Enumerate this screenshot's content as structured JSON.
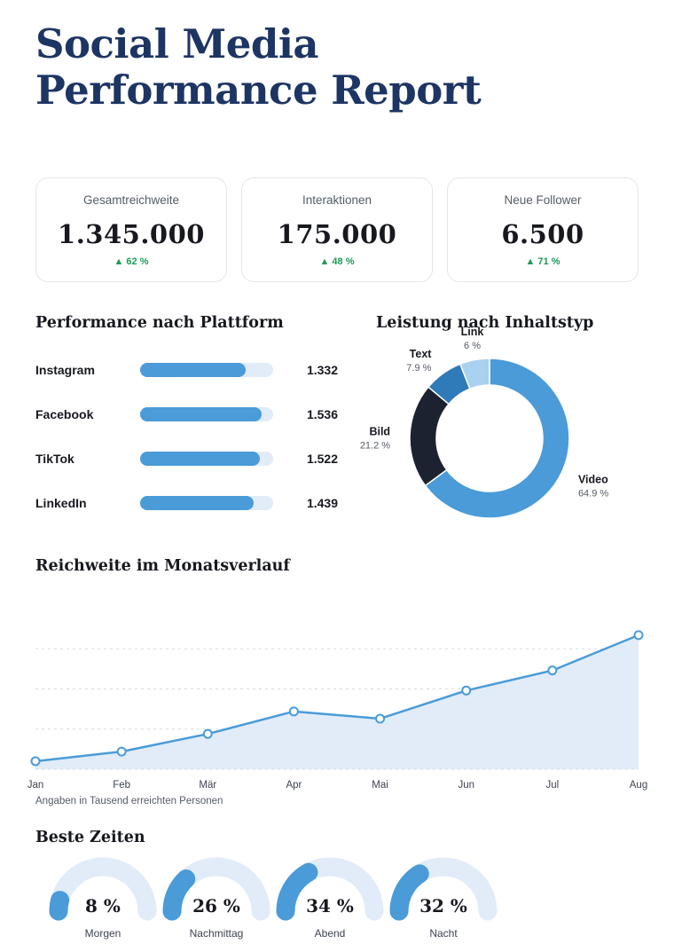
{
  "title": {
    "line1": "Social Media",
    "line2": "Performance Report"
  },
  "kpis": [
    {
      "label": "Gesamtreichweite",
      "value": "1.345.000",
      "change": "▲ 62 %"
    },
    {
      "label": "Interaktionen",
      "value": "175.000",
      "change": "▲ 48 %"
    },
    {
      "label": "Neue Follower",
      "value": "6.500",
      "change": "▲  71 %"
    }
  ],
  "colors": {
    "title": "#1d3563",
    "accent": "#4a9bd8",
    "accent_light": "#e1ecf8",
    "positive": "#1f9a55",
    "dark": "#1c2230",
    "mid_blue": "#2f7ab8",
    "pale_blue": "#a9d1f0"
  },
  "chart_data": [
    {
      "type": "bar",
      "title": "Performance nach Plattform",
      "categories": [
        "Instagram",
        "Facebook",
        "TikTok",
        "LinkedIn"
      ],
      "values": [
        1.332,
        1.536,
        1.522,
        1.439
      ],
      "value_labels": [
        "1.332",
        "1.536",
        "1.522",
        "1.439"
      ],
      "fill_fractions": [
        0.79,
        0.91,
        0.9,
        0.85
      ]
    },
    {
      "type": "pie",
      "title": "Leistung nach Inhaltstyp",
      "slices": [
        {
          "label": "Video",
          "value": 64.9,
          "value_label": "64.9 %",
          "color": "#4a9bd8"
        },
        {
          "label": "Bild",
          "value": 21.2,
          "value_label": "21.2 %",
          "color": "#1c2230"
        },
        {
          "label": "Text",
          "value": 7.9,
          "value_label": "7.9 %",
          "color": "#2f7ab8"
        },
        {
          "label": "Link",
          "value": 6,
          "value_label": "6 %",
          "color": "#a9d1f0"
        }
      ]
    },
    {
      "type": "area",
      "title": "Reichweite im Monatsverlauf",
      "categories": [
        "Jan",
        "Feb",
        "Mär",
        "Apr",
        "Mai",
        "Jun",
        "Jul",
        "Aug"
      ],
      "values": [
        10,
        22,
        44,
        72,
        63,
        98,
        123,
        167
      ],
      "ylim": [
        0,
        200
      ],
      "grid": true,
      "note": "Angaben in Tausend erreichten Personen"
    },
    {
      "type": "gauge",
      "title": "Beste Zeiten",
      "items": [
        {
          "label": "Morgen",
          "value": 8,
          "value_label": "8 %"
        },
        {
          "label": "Nachmittag",
          "value": 26,
          "value_label": "26 %"
        },
        {
          "label": "Abend",
          "value": 34,
          "value_label": "34 %"
        },
        {
          "label": "Nacht",
          "value": 32,
          "value_label": "32 %"
        }
      ]
    }
  ]
}
